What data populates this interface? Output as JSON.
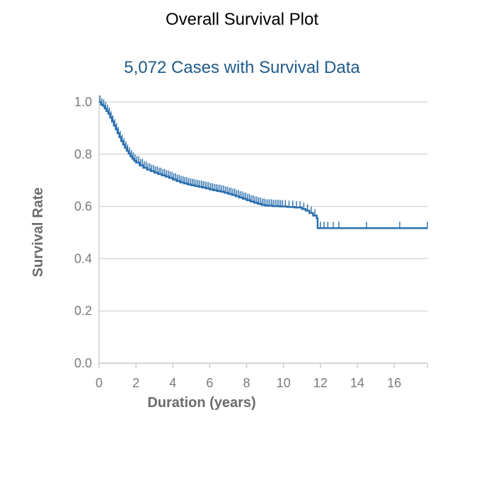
{
  "colors": {
    "series": "#2a6fae",
    "subtitle": "#1f5a8a",
    "grid": "#d9d9d9",
    "axis": "#cfcfcf"
  },
  "chart_data": {
    "type": "line",
    "title": "Overall Survival Plot",
    "subtitle": "5,072 Cases with Survival Data",
    "xlabel": "Duration (years)",
    "ylabel": "Survival Rate",
    "xlim": [
      0,
      17.8
    ],
    "ylim": [
      0,
      1.0
    ],
    "x_ticks": [
      "0",
      "2",
      "4",
      "6",
      "8",
      "10",
      "12",
      "14",
      "16"
    ],
    "y_ticks": [
      "0.0",
      "0.2",
      "0.4",
      "0.6",
      "0.8",
      "1.0"
    ],
    "grid": "horizontal",
    "series": [
      {
        "step": true,
        "x": [
          0,
          0.1,
          0.2,
          0.3,
          0.4,
          0.5,
          0.6,
          0.7,
          0.8,
          0.9,
          1.0,
          1.1,
          1.2,
          1.3,
          1.4,
          1.5,
          1.6,
          1.7,
          1.8,
          1.9,
          2.0,
          2.2,
          2.4,
          2.6,
          2.8,
          3.0,
          3.2,
          3.4,
          3.6,
          3.8,
          4.0,
          4.2,
          4.4,
          4.6,
          4.8,
          5.0,
          5.2,
          5.4,
          5.6,
          5.8,
          6.0,
          6.2,
          6.4,
          6.6,
          6.8,
          7.0,
          7.2,
          7.4,
          7.6,
          7.8,
          8.0,
          8.2,
          8.4,
          8.6,
          8.8,
          9.0,
          9.4,
          9.8,
          10.2,
          10.6,
          11.0,
          11.2,
          11.4,
          11.6,
          11.8,
          11.85,
          12.5,
          17.8
        ],
        "y": [
          1.0,
          0.99,
          0.985,
          0.975,
          0.965,
          0.955,
          0.94,
          0.925,
          0.91,
          0.895,
          0.88,
          0.865,
          0.85,
          0.837,
          0.825,
          0.813,
          0.802,
          0.792,
          0.783,
          0.775,
          0.768,
          0.757,
          0.748,
          0.741,
          0.735,
          0.729,
          0.724,
          0.719,
          0.714,
          0.709,
          0.703,
          0.697,
          0.692,
          0.688,
          0.684,
          0.681,
          0.678,
          0.675,
          0.672,
          0.669,
          0.665,
          0.662,
          0.659,
          0.656,
          0.652,
          0.648,
          0.644,
          0.639,
          0.634,
          0.629,
          0.624,
          0.619,
          0.614,
          0.61,
          0.606,
          0.603,
          0.601,
          0.6,
          0.598,
          0.596,
          0.59,
          0.584,
          0.575,
          0.565,
          0.555,
          0.517,
          0.517,
          0.517
        ]
      }
    ],
    "censor_x": [
      0.05,
      0.15,
      0.25,
      0.35,
      0.45,
      0.55,
      0.65,
      0.75,
      0.85,
      0.95,
      1.05,
      1.15,
      1.25,
      1.35,
      1.45,
      1.55,
      1.65,
      1.75,
      1.85,
      1.95,
      2.05,
      2.15,
      2.25,
      2.35,
      2.45,
      2.55,
      2.65,
      2.75,
      2.85,
      2.95,
      3.05,
      3.15,
      3.25,
      3.35,
      3.45,
      3.55,
      3.65,
      3.75,
      3.85,
      3.95,
      4.05,
      4.15,
      4.25,
      4.35,
      4.45,
      4.55,
      4.65,
      4.75,
      4.85,
      4.95,
      5.05,
      5.15,
      5.25,
      5.35,
      5.45,
      5.55,
      5.65,
      5.75,
      5.85,
      5.95,
      6.05,
      6.15,
      6.25,
      6.35,
      6.45,
      6.55,
      6.65,
      6.75,
      6.85,
      6.95,
      7.05,
      7.15,
      7.25,
      7.35,
      7.45,
      7.55,
      7.65,
      7.75,
      7.85,
      7.95,
      8.05,
      8.15,
      8.25,
      8.35,
      8.45,
      8.55,
      8.65,
      8.75,
      8.85,
      8.95,
      9.05,
      9.15,
      9.25,
      9.35,
      9.45,
      9.55,
      9.65,
      9.75,
      9.85,
      9.95,
      10.1,
      10.3,
      10.5,
      10.7,
      10.9,
      11.1,
      11.3,
      11.5,
      11.7,
      12.0,
      12.2,
      12.4,
      12.7,
      13.0,
      14.5,
      16.3,
      17.8
    ]
  }
}
